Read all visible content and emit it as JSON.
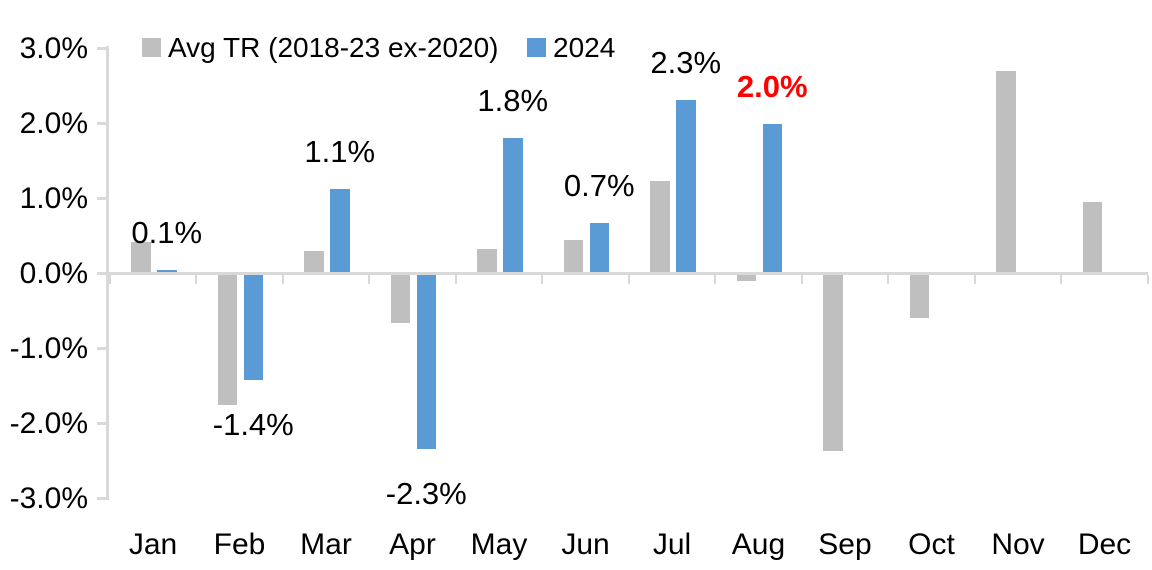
{
  "legend": {
    "series1_label": "Avg TR (2018-23 ex-2020)",
    "series2_label": "2024"
  },
  "colors": {
    "gray_series": "#BFBFBF",
    "blue_series": "#5B9BD5",
    "axis": "#D9D9D9",
    "text": "#000000",
    "highlight_red": "#FF0000"
  },
  "chart_data": {
    "type": "bar",
    "title": "",
    "xlabel": "",
    "ylabel": "",
    "categories": [
      "Jan",
      "Feb",
      "Mar",
      "Apr",
      "May",
      "Jun",
      "Jul",
      "Aug",
      "Sep",
      "Oct",
      "Nov",
      "Dec"
    ],
    "series": [
      {
        "name": "Avg TR (2018-23 ex-2020)",
        "color": "#BFBFBF",
        "values": [
          0.42,
          -1.75,
          0.3,
          -0.66,
          0.33,
          0.45,
          1.23,
          -0.1,
          -2.37,
          -0.59,
          2.7,
          0.95
        ]
      },
      {
        "name": "2024",
        "color": "#5B9BD5",
        "values": [
          0.05,
          -1.42,
          1.13,
          -2.34,
          1.81,
          0.68,
          2.31,
          2.0,
          null,
          null,
          null,
          null
        ],
        "data_labels": [
          {
            "text": "0.1%",
            "color": "#000000",
            "bold": false
          },
          {
            "text": "-1.4%",
            "color": "#000000",
            "bold": false
          },
          {
            "text": "1.1%",
            "color": "#000000",
            "bold": false
          },
          {
            "text": "-2.3%",
            "color": "#000000",
            "bold": false
          },
          {
            "text": "1.8%",
            "color": "#000000",
            "bold": false
          },
          {
            "text": "0.7%",
            "color": "#000000",
            "bold": false
          },
          {
            "text": "2.3%",
            "color": "#000000",
            "bold": false
          },
          {
            "text": "2.0%",
            "color": "#FF0000",
            "bold": true
          },
          null,
          null,
          null,
          null
        ]
      }
    ],
    "y_ticks": [
      "3.0%",
      "2.0%",
      "1.0%",
      "0.0%",
      "-1.0%",
      "-2.0%",
      "-3.0%"
    ],
    "y_tick_values": [
      3,
      2,
      1,
      0,
      -1,
      -2,
      -3
    ],
    "ylim": [
      -3,
      3
    ],
    "grid": false,
    "legend_position": "top-left"
  }
}
